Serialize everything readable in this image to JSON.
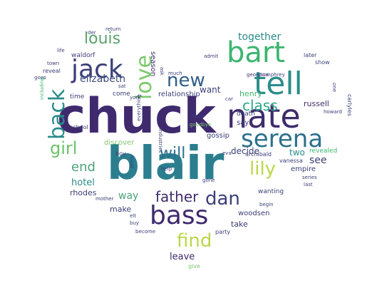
{
  "image": {
    "type": "word-cloud",
    "shape": "heart",
    "background": "#ffffff",
    "palette": [
      "#440154",
      "#3b528b",
      "#21918c",
      "#5ec962",
      "#fde725"
    ]
  },
  "words": [
    {
      "text": "chuck",
      "color": "#3f2a6e"
    },
    {
      "text": "blair",
      "color": "#2b7e8e"
    },
    {
      "text": "bart",
      "color": "#3cb56f"
    },
    {
      "text": "tell",
      "color": "#2a8c8a"
    },
    {
      "text": "nate",
      "color": "#3e2b6a"
    },
    {
      "text": "serena",
      "color": "#2c6f8e"
    },
    {
      "text": "jack",
      "color": "#3b3f78"
    },
    {
      "text": "louis",
      "color": "#5aa36c"
    },
    {
      "text": "love",
      "color": "#7bc96b"
    },
    {
      "text": "new",
      "color": "#2e5e86"
    },
    {
      "text": "class",
      "color": "#2aa886"
    },
    {
      "text": "back",
      "color": "#2a8a8a"
    },
    {
      "text": "girl",
      "color": "#6cc36a"
    },
    {
      "text": "bass",
      "color": "#3f2a6e"
    },
    {
      "text": "dan",
      "color": "#3b3f78"
    },
    {
      "text": "father",
      "color": "#3e2b6a"
    },
    {
      "text": "find",
      "color": "#b9d84a"
    },
    {
      "text": "lily",
      "color": "#b9d84a"
    },
    {
      "text": "will",
      "color": "#2c6f8e"
    },
    {
      "text": "end",
      "color": "#4aa37a"
    },
    {
      "text": "together",
      "color": "#2a8a8a"
    },
    {
      "text": "elizabeth",
      "color": "#3e4d80"
    },
    {
      "text": "want",
      "color": "#3b3f78"
    },
    {
      "text": "decide",
      "color": "#3b3f78"
    },
    {
      "text": "see",
      "color": "#3b3f78"
    },
    {
      "text": "two",
      "color": "#2a8a8a"
    },
    {
      "text": "hotel",
      "color": "#2a8a8a"
    },
    {
      "text": "way",
      "color": "#4aa37a"
    },
    {
      "text": "make",
      "color": "#3b3f78"
    },
    {
      "text": "take",
      "color": "#3b3f78"
    },
    {
      "text": "leave",
      "color": "#3e2b6a"
    },
    {
      "text": "season",
      "color": "#3e2b6a"
    },
    {
      "text": "russell",
      "color": "#3e2b6a"
    },
    {
      "text": "henry",
      "color": "#3cb56f"
    },
    {
      "text": "discover",
      "color": "#7bc96b"
    },
    {
      "text": "empire",
      "color": "#3b3f78"
    },
    {
      "text": "relationship",
      "color": "#3b3f78"
    },
    {
      "text": "gossip",
      "color": "#3b3f78"
    },
    {
      "text": "says",
      "color": "#3b3f78"
    },
    {
      "text": "death",
      "color": "#3b3f78"
    },
    {
      "text": "rhodes",
      "color": "#3b3f78"
    },
    {
      "text": "woodsen",
      "color": "#3b3f78"
    },
    {
      "text": "wanting",
      "color": "#3b3f78"
    },
    {
      "text": "waldorf",
      "color": "#3b3f78"
    },
    {
      "text": "time",
      "color": "#3b3f78"
    },
    {
      "text": "come",
      "color": "#3b3f78"
    },
    {
      "text": "reveal",
      "color": "#3b3f78"
    },
    {
      "text": "school",
      "color": "#3b3f78"
    },
    {
      "text": "boy",
      "color": "#3b3f78"
    },
    {
      "text": "party",
      "color": "#3b3f78"
    },
    {
      "text": "give",
      "color": "#7bc96b"
    },
    {
      "text": "become",
      "color": "#3b3f78"
    },
    {
      "text": "revealed",
      "color": "#3cb56f"
    },
    {
      "text": "archibald",
      "color": "#3b3f78"
    },
    {
      "text": "vanessa",
      "color": "#3b3f78"
    },
    {
      "text": "carlyles",
      "color": "#3b3f78"
    },
    {
      "text": "humphrey",
      "color": "#3b3f78"
    },
    {
      "text": "georgina",
      "color": "#3e2b6a"
    },
    {
      "text": "later",
      "color": "#3b3f78"
    },
    {
      "text": "show",
      "color": "#3b3f78"
    },
    {
      "text": "admit",
      "color": "#3b3f78"
    },
    {
      "text": "der",
      "color": "#3b3f78"
    },
    {
      "text": "return",
      "color": "#3b3f78"
    },
    {
      "text": "life",
      "color": "#3b3f78"
    },
    {
      "text": "town",
      "color": "#3b3f78"
    },
    {
      "text": "goes",
      "color": "#3b3f78"
    },
    {
      "text": "including",
      "color": "#3cb56f"
    },
    {
      "text": "mother",
      "color": "#3b3f78"
    },
    {
      "text": "series",
      "color": "#3b3f78"
    },
    {
      "text": "last",
      "color": "#3b3f78"
    },
    {
      "text": "begin",
      "color": "#3b3f78"
    },
    {
      "text": "eva",
      "color": "#3b3f78"
    },
    {
      "text": "gone",
      "color": "#3b3f78"
    },
    {
      "text": "goodbye",
      "color": "#7bc96b"
    },
    {
      "text": "industries",
      "color": "#3b3f78"
    },
    {
      "text": "york",
      "color": "#3b3f78"
    },
    {
      "text": "ask",
      "color": "#3b3f78"
    },
    {
      "text": "much",
      "color": "#3b3f78"
    },
    {
      "text": "jenny",
      "color": "#3b3f78"
    },
    {
      "text": "help",
      "color": "#3b3f78"
    },
    {
      "text": "buy",
      "color": "#3b3f78"
    },
    {
      "text": "elt",
      "color": "#3b3f78"
    },
    {
      "text": "car",
      "color": "#3b3f78"
    },
    {
      "text": "night",
      "color": "#3b3f78"
    },
    {
      "text": "howard",
      "color": "#3b3f78"
    },
    {
      "text": "one",
      "color": "#3b3f78"
    },
    {
      "text": "sat",
      "color": "#3b3f78"
    },
    {
      "text": "everything",
      "color": "#3b3f78"
    }
  ]
}
